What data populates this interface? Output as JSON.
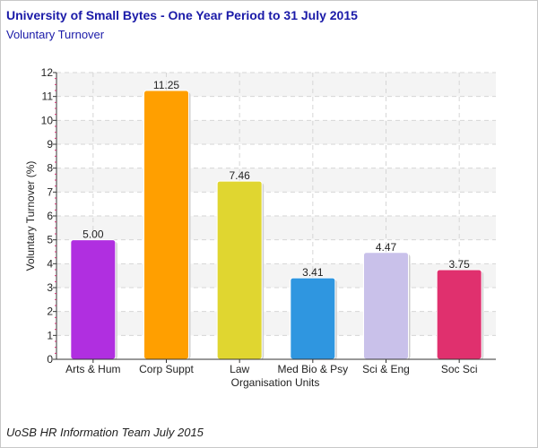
{
  "chart_data": {
    "type": "bar",
    "title": "University of Small Bytes - One Year Period to 31 July 2015",
    "subtitle": "Voluntary Turnover",
    "xlabel": "Organisation Units",
    "ylabel": "Voluntary Turnover (%)",
    "ylim": [
      0,
      12
    ],
    "yticks": [
      0,
      1,
      2,
      3,
      4,
      5,
      6,
      7,
      8,
      9,
      10,
      11,
      12
    ],
    "categories": [
      "Arts & Hum",
      "Corp Suppt",
      "Law",
      "Med Bio & Psy",
      "Sci & Eng",
      "Soc Sci"
    ],
    "values": [
      5.0,
      11.25,
      7.46,
      3.41,
      4.47,
      3.75
    ],
    "value_labels": [
      "5.00",
      "11.25",
      "7.46",
      "3.41",
      "4.47",
      "3.75"
    ],
    "colors": [
      "#b02fe0",
      "#ff9f00",
      "#e0d630",
      "#2f96e0",
      "#c9c1ea",
      "#e0306e"
    ],
    "grid": true,
    "legend": "none"
  },
  "footer": "UoSB HR Information Team July 2015"
}
